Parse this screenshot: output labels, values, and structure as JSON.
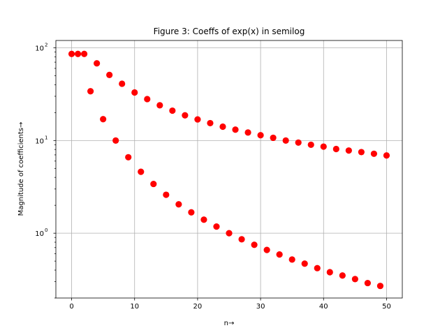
{
  "chart_data": {
    "type": "scatter",
    "title": "Figure 3: Coeffs of exp(x) in semilog",
    "xlabel": "n→",
    "ylabel": "Magnitude of coefficients→",
    "xlim": [
      -2.5,
      52.5
    ],
    "ylim": [
      0.2,
      120
    ],
    "yscale": "log",
    "grid": true,
    "marker_color": "#ff0000",
    "x_ticks": [
      0,
      10,
      20,
      30,
      40,
      50
    ],
    "x_tick_labels": [
      "0",
      "10",
      "20",
      "30",
      "40",
      "50"
    ],
    "y_ticks": [
      1,
      10,
      100
    ],
    "y_tick_labels": [
      "10",
      "10",
      "10"
    ],
    "y_tick_exponents": [
      "0",
      "1",
      "2"
    ],
    "series": [
      {
        "x": [
          0,
          1,
          2,
          3,
          4,
          5,
          6,
          7,
          8,
          9,
          10,
          11,
          12,
          13,
          14,
          15,
          16,
          17,
          18,
          19,
          20,
          21,
          22,
          23,
          24,
          25,
          26,
          27,
          28,
          29,
          30,
          31,
          32,
          33,
          34,
          35,
          36,
          37,
          38,
          39,
          40,
          41,
          42,
          43,
          44,
          45,
          46,
          47,
          48,
          49,
          50
        ],
        "y": [
          86,
          86,
          86,
          34,
          68,
          17,
          51,
          10,
          41,
          6.6,
          33,
          4.6,
          28,
          3.4,
          24,
          2.6,
          21,
          2.05,
          18.7,
          1.68,
          16.9,
          1.4,
          15.4,
          1.18,
          14.1,
          1.0,
          13.1,
          0.86,
          12.2,
          0.75,
          11.4,
          0.66,
          10.7,
          0.59,
          10.0,
          0.52,
          9.5,
          0.47,
          9.0,
          0.42,
          8.6,
          0.38,
          8.1,
          0.35,
          7.8,
          0.32,
          7.5,
          0.29,
          7.2,
          0.27,
          6.9
        ]
      }
    ]
  }
}
